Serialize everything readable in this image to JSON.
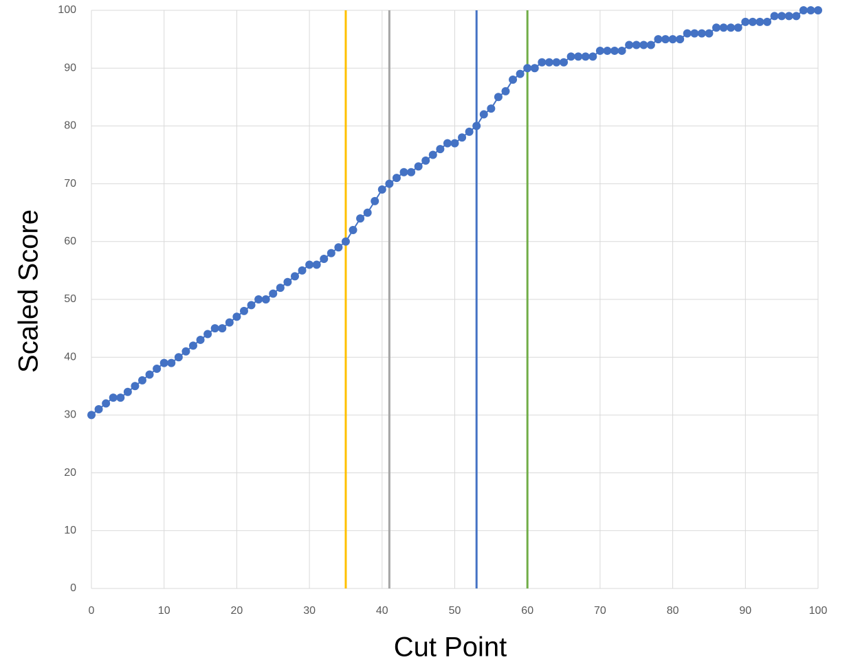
{
  "chart_data": {
    "type": "scatter",
    "x_label": "Cut Point",
    "y_label": "Scaled Score",
    "xlim": [
      0,
      100
    ],
    "xticks": [
      0,
      10,
      20,
      30,
      40,
      50,
      60,
      70,
      80,
      90,
      100
    ],
    "ylim": [
      0,
      100
    ],
    "yticks": [
      0,
      10,
      20,
      30,
      40,
      50,
      60,
      70,
      80,
      90,
      100
    ],
    "grid": true,
    "series": [
      {
        "color": "#4472c4",
        "x": [
          0,
          1,
          2,
          3,
          4,
          5,
          6,
          7,
          8,
          9,
          10,
          11,
          12,
          13,
          14,
          15,
          16,
          17,
          18,
          19,
          20,
          21,
          22,
          23,
          24,
          25,
          26,
          27,
          28,
          29,
          30,
          31,
          32,
          33,
          34,
          35,
          36,
          37,
          38,
          39,
          40,
          41,
          42,
          43,
          44,
          45,
          46,
          47,
          48,
          49,
          50,
          51,
          52,
          53,
          54,
          55,
          56,
          57,
          58,
          59,
          60,
          61,
          62,
          63,
          64,
          65,
          66,
          67,
          68,
          69,
          70,
          71,
          72,
          73,
          74,
          75,
          76,
          77,
          78,
          79,
          80,
          81,
          82,
          83,
          84,
          85,
          86,
          87,
          88,
          89,
          90,
          91,
          92,
          93,
          94,
          95,
          96,
          97,
          98,
          99,
          100
        ],
        "values": [
          30,
          31,
          32,
          33,
          33,
          34,
          35,
          36,
          37,
          38,
          39,
          39,
          40,
          41,
          42,
          43,
          44,
          45,
          45,
          46,
          47,
          48,
          49,
          50,
          50,
          51,
          52,
          53,
          54,
          55,
          56,
          56,
          57,
          58,
          59,
          60,
          62,
          64,
          65,
          67,
          69,
          70,
          71,
          72,
          72,
          73,
          74,
          75,
          76,
          77,
          77,
          78,
          79,
          80,
          82,
          83,
          85,
          86,
          88,
          89,
          90,
          90,
          91,
          91,
          91,
          91,
          92,
          92,
          92,
          92,
          93,
          93,
          93,
          93,
          94,
          94,
          94,
          94,
          95,
          95,
          95,
          95,
          96,
          96,
          96,
          96,
          97,
          97,
          97,
          97,
          98,
          98,
          98,
          98,
          99,
          99,
          99,
          99,
          100,
          100,
          100
        ]
      }
    ],
    "reference_lines": [
      {
        "x": 35,
        "color": "#ffc000"
      },
      {
        "x": 41,
        "color": "#a5a5a5"
      },
      {
        "x": 53,
        "color": "#4472c4"
      },
      {
        "x": 60,
        "color": "#70ad47"
      }
    ]
  }
}
